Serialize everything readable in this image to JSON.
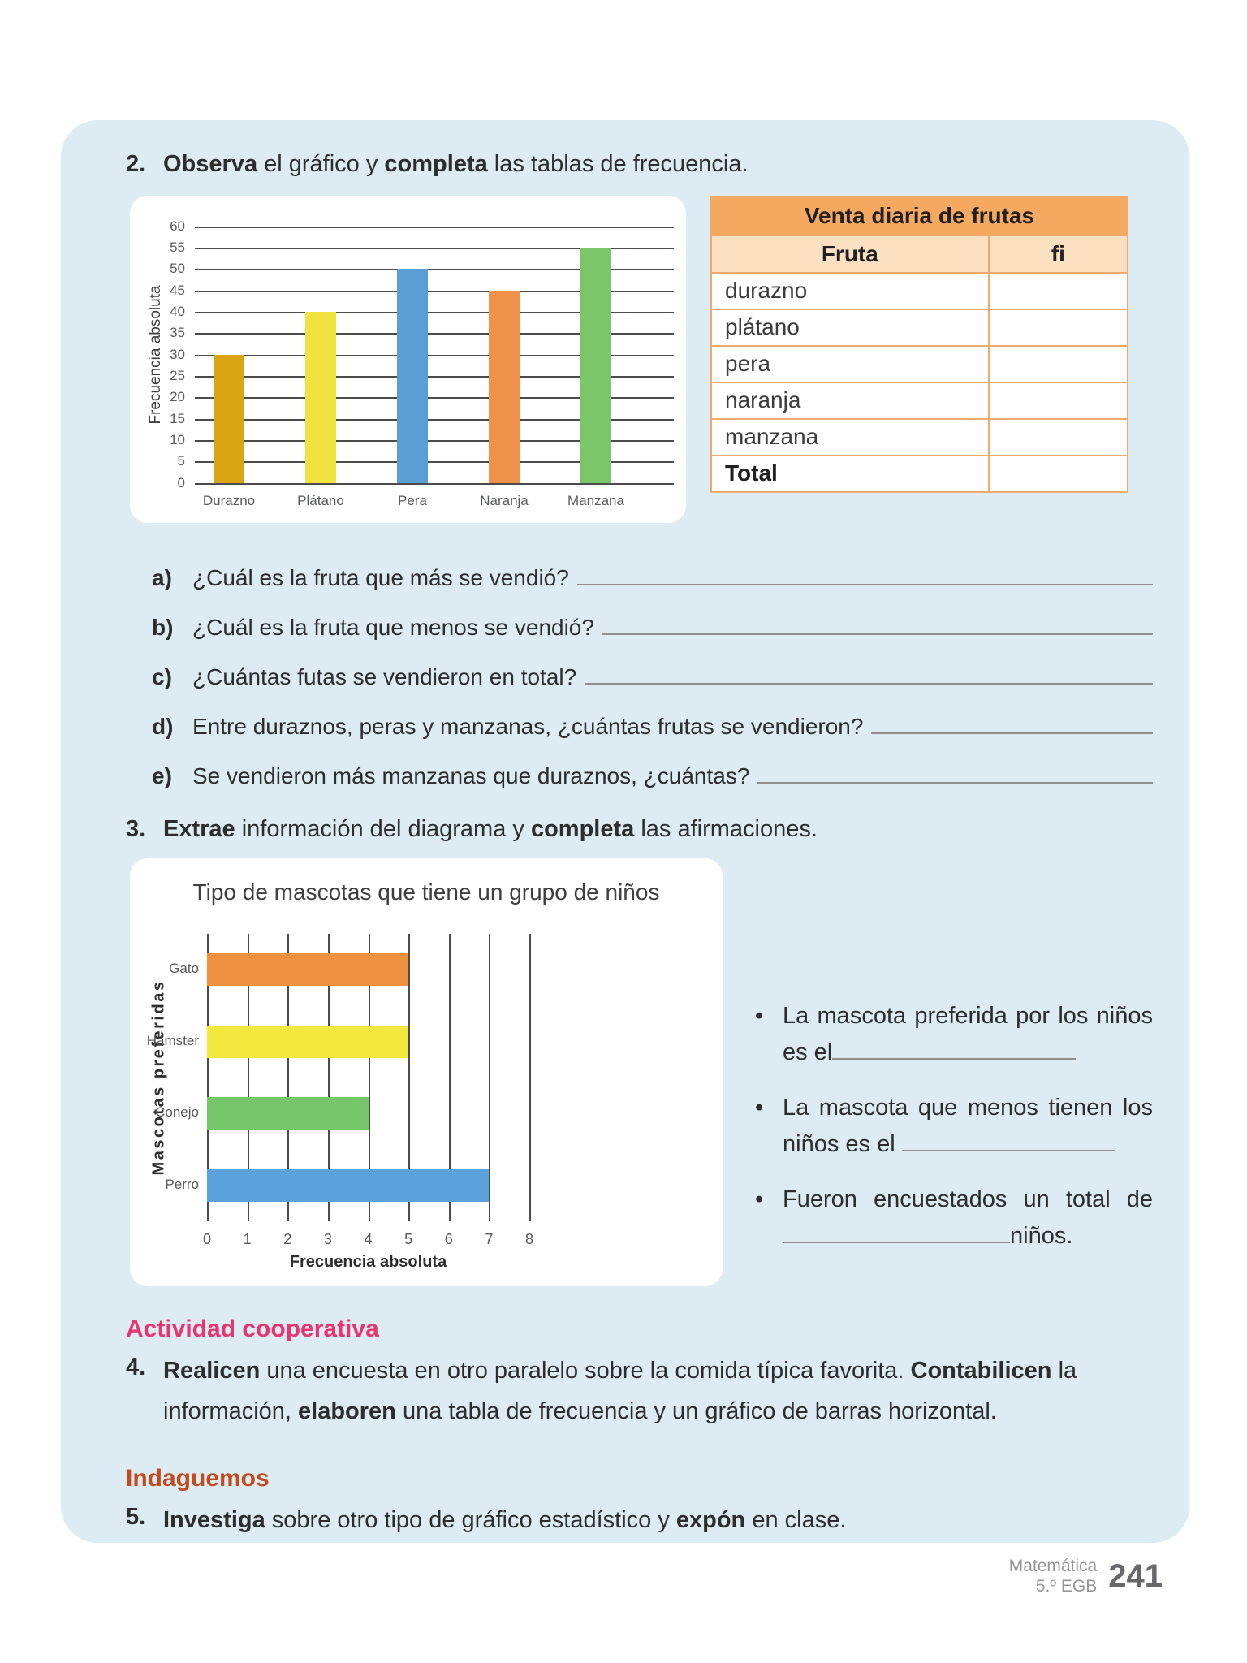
{
  "panel": {
    "background": "#DDECF2"
  },
  "exercise2": {
    "number": "2.",
    "segments": [
      {
        "text": "Observa",
        "bold": true
      },
      {
        "text": " el gráfico y ",
        "bold": false
      },
      {
        "text": "completa",
        "bold": true
      },
      {
        "text": " las tablas de frecuencia.",
        "bold": false
      }
    ]
  },
  "table": {
    "title": "Venta diaria de frutas",
    "columns": [
      "Fruta",
      "fi"
    ],
    "rows": [
      {
        "label": "durazno",
        "value": ""
      },
      {
        "label": "plátano",
        "value": ""
      },
      {
        "label": "pera",
        "value": ""
      },
      {
        "label": "naranja",
        "value": ""
      },
      {
        "label": "manzana",
        "value": ""
      },
      {
        "label": "Total",
        "value": ""
      }
    ],
    "colors": {
      "header_bg": "#F5A85F",
      "subheader_bg": "#FBE1C2",
      "border": "#F0A96E"
    }
  },
  "questions": [
    {
      "letter": "a)",
      "text": "¿Cuál es la fruta que más se vendió?"
    },
    {
      "letter": "b)",
      "text": "¿Cuál es la fruta que menos se vendió?"
    },
    {
      "letter": "c)",
      "text": "¿Cuántas futas se vendieron en total?"
    },
    {
      "letter": "d)",
      "text": "Entre duraznos, peras y manzanas, ¿cuántas frutas se vendieron?"
    },
    {
      "letter": "e)",
      "text": "Se vendieron más manzanas que duraznos, ¿cuántas?"
    }
  ],
  "exercise3": {
    "number": "3.",
    "segments": [
      {
        "text": "Extrae",
        "bold": true
      },
      {
        "text": " información del diagrama y ",
        "bold": false
      },
      {
        "text": "completa",
        "bold": true
      },
      {
        "text": " las afirmaciones.",
        "bold": false
      }
    ]
  },
  "bullets": [
    {
      "bullet": "•",
      "before": "La mascota preferida por los niños es el",
      "after": ""
    },
    {
      "bullet": "•",
      "before": "La mascota que menos tienen los niños es el ",
      "after": ""
    },
    {
      "bullet": "•",
      "before": "Fueron encuestados un total de",
      "after": "niños."
    }
  ],
  "coop": {
    "heading": "Actividad cooperativa",
    "number": "4.",
    "segments": [
      {
        "text": "Realicen",
        "bold": true
      },
      {
        "text": " una encuesta en otro paralelo sobre la comida típica favorita. ",
        "bold": false
      },
      {
        "text": "Contabilicen",
        "bold": true
      },
      {
        "text": " la información, ",
        "bold": false
      },
      {
        "text": "elaboren",
        "bold": true
      },
      {
        "text": " una tabla de frecuencia y un gráfico de barras horizontal.",
        "bold": false
      }
    ]
  },
  "indaguemos": {
    "heading": "Indaguemos",
    "number": "5.",
    "segments": [
      {
        "text": "Investiga",
        "bold": true
      },
      {
        "text": " sobre otro tipo de gráfico estadístico y ",
        "bold": false
      },
      {
        "text": "expón",
        "bold": true
      },
      {
        "text": " en clase.",
        "bold": false
      }
    ]
  },
  "footer": {
    "line1": "Matemática",
    "line2": "5.º EGB",
    "page_number": "241"
  },
  "chart_data": [
    {
      "type": "bar",
      "orientation": "vertical",
      "categories": [
        "Durazno",
        "Plátano",
        "Pera",
        "Naranja",
        "Manzana"
      ],
      "values": [
        30,
        40,
        50,
        45,
        55
      ],
      "colors": [
        "#D9A513",
        "#F2E340",
        "#5B9ED6",
        "#F0924C",
        "#79C66B"
      ],
      "title": "",
      "xlabel": "",
      "ylabel": "Frecuencia absoluta",
      "ylim": [
        0,
        60
      ],
      "ytick_step": 5,
      "grid": true,
      "legend": "none"
    },
    {
      "type": "bar",
      "orientation": "horizontal",
      "categories": [
        "Gato",
        "Hámster",
        "Conejo",
        "Perro"
      ],
      "values": [
        5,
        5,
        4,
        7
      ],
      "colors": [
        "#F0913F",
        "#F2E83E",
        "#77C56B",
        "#5BA1DC"
      ],
      "title": "Tipo de mascotas que tiene un grupo de niños",
      "xlabel": "Frecuencia absoluta",
      "ylabel": "Mascotas preferidas",
      "xlim": [
        0,
        8
      ],
      "xtick_step": 1,
      "grid": true,
      "legend": "none"
    }
  ]
}
